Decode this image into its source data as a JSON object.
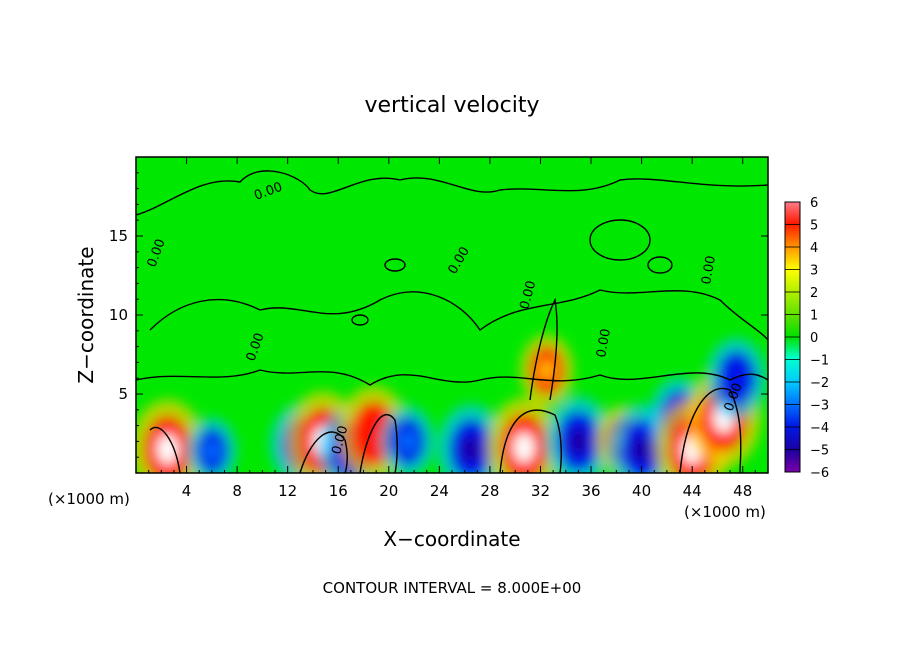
{
  "chart_data": {
    "type": "heatmap",
    "title": "vertical velocity",
    "xlabel": "X−coordinate",
    "ylabel": "Z−coordinate",
    "x_unit_left": "(×1000 m)",
    "x_unit_right": "(×1000 m)",
    "xlim": [
      0,
      50
    ],
    "ylim": [
      0,
      20
    ],
    "x_ticks": [
      4,
      8,
      12,
      16,
      20,
      24,
      28,
      32,
      36,
      40,
      44,
      48
    ],
    "y_ticks": [
      5,
      10,
      15
    ],
    "footer": "CONTOUR INTERVAL = 8.000E+00",
    "colorbar": {
      "ticks": [
        "6",
        "5",
        "4",
        "3",
        "2",
        "1",
        "0",
        "−1",
        "−2",
        "−3",
        "−4",
        "−5",
        "−6"
      ],
      "range": [
        -6,
        6
      ],
      "colors": [
        "#7a00a8",
        "#1c00a0",
        "#0018e8",
        "#0070ff",
        "#00c8ff",
        "#00ffd0",
        "#00e000",
        "#5ee000",
        "#b4f000",
        "#ffff00",
        "#ffc000",
        "#ff7000",
        "#ff1800",
        "#e80000",
        "#ff7c8a"
      ]
    },
    "contour_label": "0.00",
    "background_value": 0,
    "features": [
      {
        "x": 2.5,
        "z": 1.5,
        "w": 6.0
      },
      {
        "x": 6.0,
        "z": 1.4,
        "w": -2.5
      },
      {
        "x": 13.0,
        "z": 1.8,
        "w": -4.0
      },
      {
        "x": 14.8,
        "z": 2.0,
        "w": 6.0
      },
      {
        "x": 17.0,
        "z": 1.4,
        "w": -4.5
      },
      {
        "x": 18.8,
        "z": 2.5,
        "w": 5.5
      },
      {
        "x": 21.5,
        "z": 2.0,
        "w": -3.0
      },
      {
        "x": 26.5,
        "z": 1.5,
        "w": -5.0
      },
      {
        "x": 30.7,
        "z": 1.6,
        "w": 6.0
      },
      {
        "x": 32.5,
        "z": 6.5,
        "w": 3.0
      },
      {
        "x": 35.0,
        "z": 2.0,
        "w": -5.0
      },
      {
        "x": 38.5,
        "z": 2.0,
        "w": 3.0
      },
      {
        "x": 40.0,
        "z": 1.5,
        "w": -5.0
      },
      {
        "x": 43.0,
        "z": 3.5,
        "w": -4.0
      },
      {
        "x": 44.0,
        "z": 1.5,
        "w": 6.0
      },
      {
        "x": 46.5,
        "z": 3.5,
        "w": 6.0
      },
      {
        "x": 47.5,
        "z": 6.0,
        "w": -4.0
      }
    ]
  }
}
